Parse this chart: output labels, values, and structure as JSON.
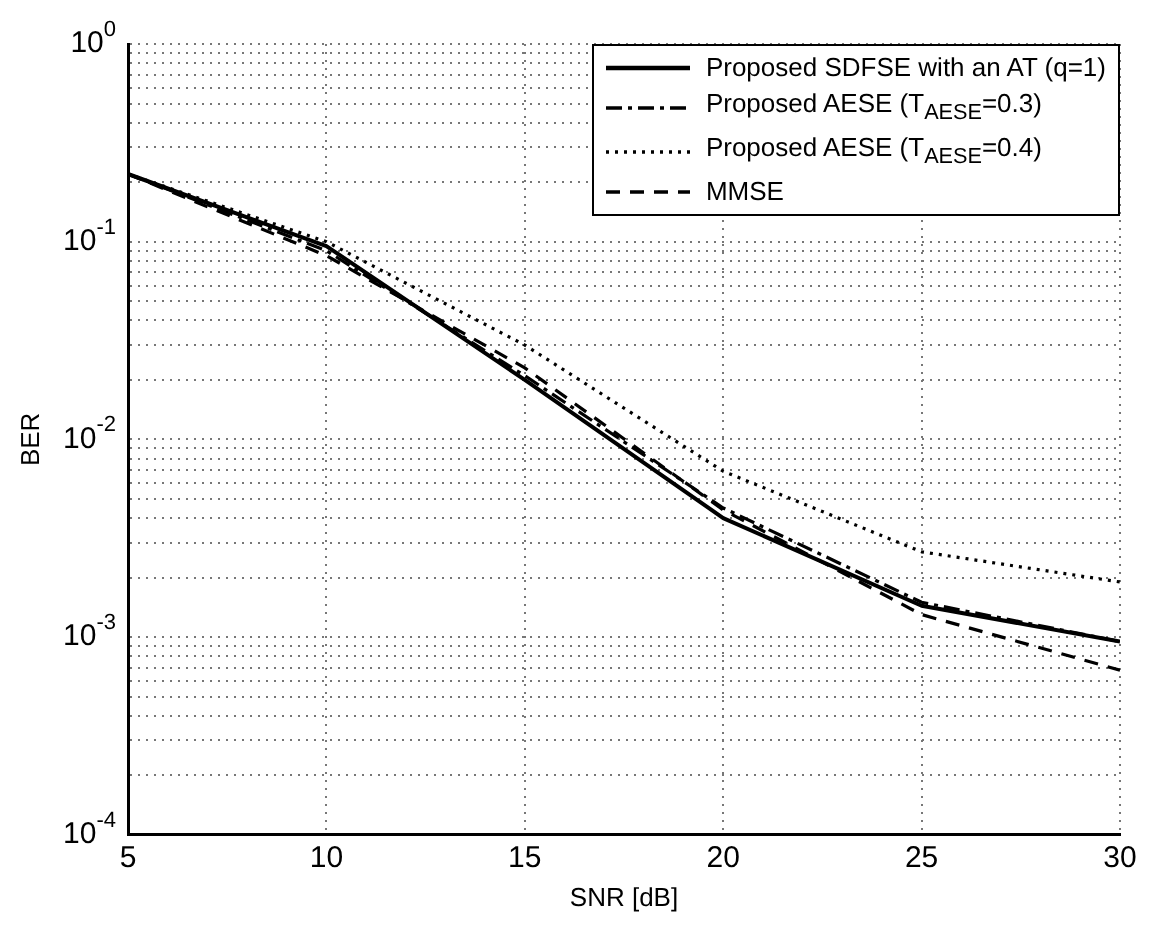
{
  "chart_data": {
    "type": "line",
    "xlabel": "SNR [dB]",
    "ylabel": "BER",
    "x": [
      5,
      10,
      15,
      20,
      25,
      30
    ],
    "series": [
      {
        "name": "Proposed SDFSE with an AT (q=1)",
        "color": "#000000",
        "line_style": "solid",
        "values": [
          0.22,
          0.095,
          0.02,
          0.004,
          0.00144,
          0.00095
        ]
      },
      {
        "name": "Proposed AESE (T$_{AESE}$=0.3)",
        "color": "#000000",
        "line_style": "dashdot",
        "values": [
          0.22,
          0.09,
          0.021,
          0.0045,
          0.0015,
          0.00095
        ]
      },
      {
        "name": "Proposed AESE (T$_{AESE}$=0.4)",
        "color": "#000000",
        "line_style": "dotted",
        "values": [
          0.22,
          0.1,
          0.03,
          0.0069,
          0.0027,
          0.0019
        ]
      },
      {
        "name": "MMSE",
        "color": "#000000",
        "line_style": "dashed",
        "values": [
          0.22,
          0.085,
          0.023,
          0.0044,
          0.0013,
          0.00068
        ]
      }
    ],
    "log": "y",
    "grid": true,
    "legend": "top right",
    "marker": "none",
    "xlim": [
      5,
      30
    ],
    "xticks": [
      5,
      10,
      15,
      20,
      25,
      30
    ],
    "ylim": [
      0.0001,
      1
    ],
    "yticks": [
      {
        "value": 0.0001,
        "label": "10$^{-4}$"
      },
      {
        "value": 0.0002,
        "label": null
      },
      {
        "value": 0.0003,
        "label": null
      },
      {
        "value": 0.0004,
        "label": null
      },
      {
        "value": 0.0005,
        "label": null
      },
      {
        "value": 0.0006,
        "label": null
      },
      {
        "value": 0.0007,
        "label": null
      },
      {
        "value": 0.0008,
        "label": null
      },
      {
        "value": 0.0009,
        "label": null
      },
      {
        "value": 0.001,
        "label": "10$^{-3}$"
      },
      {
        "value": 0.002,
        "label": null
      },
      {
        "value": 0.003,
        "label": null
      },
      {
        "value": 0.004,
        "label": null
      },
      {
        "value": 0.005,
        "label": null
      },
      {
        "value": 0.006,
        "label": null
      },
      {
        "value": 0.007,
        "label": null
      },
      {
        "value": 0.008,
        "label": null
      },
      {
        "value": 0.009,
        "label": null
      },
      {
        "value": 0.01,
        "label": "10$^{-2}$"
      },
      {
        "value": 0.02,
        "label": null
      },
      {
        "value": 0.03,
        "label": null
      },
      {
        "value": 0.04,
        "label": null
      },
      {
        "value": 0.05,
        "label": null
      },
      {
        "value": 0.06,
        "label": null
      },
      {
        "value": 0.07,
        "label": null
      },
      {
        "value": 0.08,
        "label": null
      },
      {
        "value": 0.09,
        "label": null
      },
      {
        "value": 0.1,
        "label": "10$^{-1}$"
      },
      {
        "value": 0.2,
        "label": null
      },
      {
        "value": 0.3,
        "label": null
      },
      {
        "value": 0.4,
        "label": null
      },
      {
        "value": 0.5,
        "label": null
      },
      {
        "value": 0.6,
        "label": null
      },
      {
        "value": 0.7,
        "label": null
      },
      {
        "value": 0.8,
        "label": null
      },
      {
        "value": 0.9,
        "label": null
      },
      {
        "value": 1,
        "label": "10$^{0}$"
      }
    ]
  }
}
